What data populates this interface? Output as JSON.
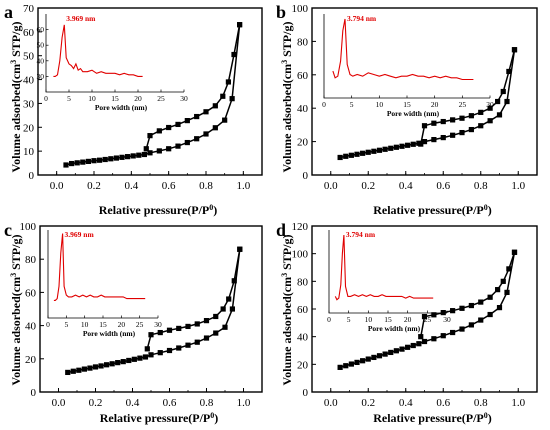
{
  "chart_data": [
    {
      "type": "line",
      "panel_letter": "a",
      "xlabel": "Relative pressure(P/P0)",
      "ylabel": "Volume adsorbed(cm3 STP/g)",
      "xlim": [
        -0.1,
        1.1
      ],
      "ylim": [
        0,
        70
      ],
      "xticks": [
        "0.0",
        "0.2",
        "0.4",
        "0.6",
        "0.8",
        "1.0"
      ],
      "yticks": [
        "0",
        "10",
        "20",
        "30",
        "40",
        "50",
        "60",
        "70"
      ],
      "series": [
        {
          "role": "adsorption",
          "x": [
            0.05,
            0.08,
            0.11,
            0.14,
            0.17,
            0.2,
            0.23,
            0.26,
            0.29,
            0.32,
            0.35,
            0.38,
            0.41,
            0.44,
            0.47,
            0.5,
            0.55,
            0.6,
            0.65,
            0.7,
            0.75,
            0.8,
            0.85,
            0.9,
            0.94,
            0.98
          ],
          "y": [
            4.2,
            4.8,
            5.1,
            5.4,
            5.7,
            6.0,
            6.2,
            6.5,
            6.8,
            7.1,
            7.4,
            7.7,
            8.0,
            8.3,
            8.6,
            9.3,
            10.1,
            11.0,
            12.1,
            13.6,
            15.2,
            17.2,
            19.8,
            23.0,
            32.0,
            63.0
          ]
        },
        {
          "role": "desorption",
          "x": [
            0.98,
            0.95,
            0.92,
            0.89,
            0.85,
            0.8,
            0.75,
            0.7,
            0.65,
            0.6,
            0.55,
            0.5,
            0.48
          ],
          "y": [
            63.0,
            50.5,
            39.0,
            33.0,
            29.0,
            26.5,
            24.5,
            22.8,
            21.2,
            19.9,
            18.5,
            16.5,
            11.0
          ]
        }
      ],
      "inset": {
        "annotation": "3.969 nm",
        "xlabel": "Pore width (nm)",
        "xlim": [
          0,
          30
        ],
        "ylim": [
          20,
          70
        ],
        "xticks": [
          "0",
          "5",
          "10",
          "15",
          "20",
          "25",
          "30"
        ],
        "yticks": [
          "30",
          "40",
          "50",
          "60"
        ],
        "x": [
          1.6,
          2.0,
          2.5,
          3.0,
          3.5,
          3.97,
          4.4,
          5.0,
          5.5,
          6.0,
          6.5,
          7.0,
          7.5,
          8.0,
          9.0,
          10.0,
          11.0,
          12.0,
          13.0,
          14.0,
          15.0,
          16.0,
          17.0,
          18.0,
          19.0,
          20.0,
          21.0
        ],
        "y": [
          30,
          30,
          31,
          40,
          55,
          63,
          42,
          38,
          37,
          35,
          38,
          34,
          35,
          33,
          33,
          34,
          32,
          33,
          32,
          32,
          32,
          31,
          32,
          31,
          31,
          30,
          30
        ]
      }
    },
    {
      "type": "line",
      "panel_letter": "b",
      "xlabel": "Relative pressure(P/P0)",
      "ylabel": "Volume adsorbed(cm3 STP/g)",
      "xlim": [
        -0.1,
        1.1
      ],
      "ylim": [
        0,
        100
      ],
      "xticks": [
        "0.0",
        "0.2",
        "0.4",
        "0.6",
        "0.8",
        "1.0"
      ],
      "yticks": [
        "0",
        "20",
        "40",
        "60",
        "80",
        "100"
      ],
      "series": [
        {
          "role": "adsorption",
          "x": [
            0.05,
            0.08,
            0.11,
            0.14,
            0.17,
            0.2,
            0.23,
            0.26,
            0.29,
            0.32,
            0.35,
            0.38,
            0.41,
            0.44,
            0.47,
            0.5,
            0.55,
            0.6,
            0.65,
            0.7,
            0.75,
            0.8,
            0.85,
            0.9,
            0.94,
            0.98
          ],
          "y": [
            10.5,
            11.2,
            11.8,
            12.4,
            13.0,
            13.6,
            14.2,
            14.8,
            15.4,
            16.0,
            16.6,
            17.2,
            17.8,
            18.4,
            19.0,
            20.0,
            21.2,
            22.4,
            23.8,
            25.4,
            27.2,
            29.5,
            32.5,
            36.0,
            44.0,
            75.0
          ]
        },
        {
          "role": "desorption",
          "x": [
            0.98,
            0.95,
            0.92,
            0.89,
            0.85,
            0.8,
            0.75,
            0.7,
            0.65,
            0.6,
            0.55,
            0.5,
            0.48
          ],
          "y": [
            75.0,
            62.0,
            50.0,
            44.0,
            40.0,
            37.5,
            35.5,
            34.0,
            33.0,
            32.0,
            31.0,
            29.5,
            18.5
          ]
        }
      ],
      "inset": {
        "annotation": "3.794 nm",
        "xlabel": "Pore width (nm)",
        "xlim": [
          0,
          30
        ],
        "ylim": [
          20,
          70
        ],
        "xticks": [
          "0",
          "5",
          "10",
          "15",
          "20",
          "25",
          "30"
        ],
        "yticks": [],
        "x": [
          1.6,
          2.0,
          2.5,
          3.0,
          3.4,
          3.79,
          4.2,
          4.7,
          5.2,
          6.0,
          7.0,
          8.0,
          9.0,
          10.0,
          11.0,
          12.0,
          13.0,
          14.0,
          15.0,
          16.0,
          17.0,
          18.0,
          19.0,
          20.0,
          21.0,
          22.0,
          23.0,
          24.0,
          25.0,
          26.0,
          27.0
        ],
        "y": [
          36,
          32,
          33,
          42,
          60,
          67,
          40,
          34,
          33,
          34,
          33,
          35,
          34,
          33,
          34,
          33,
          32,
          33,
          33,
          34,
          33,
          33,
          32,
          33,
          32,
          33,
          32,
          32,
          31,
          31,
          31
        ]
      }
    },
    {
      "type": "line",
      "panel_letter": "c",
      "xlabel": "Relative pressure(P/P0)",
      "ylabel": "Volume adsorbed(cm3 STP/g)",
      "xlim": [
        -0.1,
        1.1
      ],
      "ylim": [
        0,
        100
      ],
      "xticks": [
        "0.0",
        "0.2",
        "0.4",
        "0.6",
        "0.8",
        "1.0"
      ],
      "yticks": [
        "0",
        "20",
        "40",
        "60",
        "80",
        "100"
      ],
      "series": [
        {
          "role": "adsorption",
          "x": [
            0.05,
            0.08,
            0.11,
            0.14,
            0.17,
            0.2,
            0.23,
            0.26,
            0.29,
            0.32,
            0.35,
            0.38,
            0.41,
            0.44,
            0.47,
            0.5,
            0.55,
            0.6,
            0.65,
            0.7,
            0.75,
            0.8,
            0.85,
            0.9,
            0.94,
            0.98
          ],
          "y": [
            11.8,
            12.5,
            13.1,
            13.8,
            14.4,
            15.1,
            15.7,
            16.4,
            17.0,
            17.7,
            18.3,
            19.0,
            19.7,
            20.4,
            21.1,
            22.4,
            23.7,
            25.0,
            26.5,
            28.2,
            30.0,
            32.5,
            35.5,
            39.0,
            50.0,
            86.0
          ]
        },
        {
          "role": "desorption",
          "x": [
            0.98,
            0.95,
            0.92,
            0.89,
            0.85,
            0.8,
            0.75,
            0.7,
            0.65,
            0.6,
            0.55,
            0.5,
            0.48
          ],
          "y": [
            86.0,
            67.0,
            56.0,
            50.0,
            45.5,
            43.0,
            41.0,
            39.5,
            38.3,
            37.2,
            35.8,
            34.5,
            26.0
          ]
        }
      ],
      "inset": {
        "annotation": "3.969 nm",
        "xlabel": "Pore width (nm)",
        "xlim": [
          0,
          30
        ],
        "ylim": [
          20,
          70
        ],
        "xticks": [
          "0",
          "5",
          "10",
          "15",
          "20",
          "25",
          "30"
        ],
        "yticks": [],
        "x": [
          1.6,
          2.0,
          2.5,
          3.0,
          3.5,
          3.97,
          4.4,
          5.0,
          5.6,
          6.5,
          7.5,
          8.5,
          9.5,
          10.5,
          11.5,
          12.5,
          13.5,
          14.5,
          15.5,
          16.5,
          17.5,
          18.5,
          19.5,
          20.5,
          21.5,
          22.5,
          23.5,
          24.5,
          25.5,
          26.5
        ],
        "y": [
          30,
          30,
          31,
          38,
          57,
          68,
          38,
          33,
          32,
          32,
          33,
          32,
          33,
          32,
          33,
          32,
          32,
          33,
          32,
          32,
          32,
          32,
          32,
          32,
          31,
          31,
          31,
          31,
          31,
          31
        ]
      }
    },
    {
      "type": "line",
      "panel_letter": "d",
      "xlabel": "Relative pressure(P/P0)",
      "ylabel": "Volume adsorbed(cm3 STP/g)",
      "xlim": [
        -0.1,
        1.1
      ],
      "ylim": [
        0,
        120
      ],
      "xticks": [
        "0.0",
        "0.2",
        "0.4",
        "0.6",
        "0.8",
        "1.0"
      ],
      "yticks": [
        "0",
        "20",
        "40",
        "60",
        "80",
        "100",
        "120"
      ],
      "series": [
        {
          "role": "adsorption",
          "x": [
            0.05,
            0.08,
            0.11,
            0.14,
            0.17,
            0.2,
            0.23,
            0.26,
            0.29,
            0.32,
            0.35,
            0.38,
            0.41,
            0.44,
            0.47,
            0.5,
            0.55,
            0.6,
            0.65,
            0.7,
            0.75,
            0.8,
            0.85,
            0.9,
            0.94,
            0.98
          ],
          "y": [
            17.8,
            19.0,
            20.2,
            21.4,
            22.6,
            23.8,
            25.0,
            26.2,
            27.4,
            28.6,
            29.8,
            31.0,
            32.3,
            33.6,
            34.9,
            36.5,
            38.5,
            40.7,
            43.0,
            45.5,
            48.5,
            52.0,
            56.0,
            61.0,
            72.0,
            101.0
          ]
        },
        {
          "role": "desorption",
          "x": [
            0.98,
            0.95,
            0.92,
            0.89,
            0.85,
            0.8,
            0.75,
            0.7,
            0.65,
            0.6,
            0.55,
            0.5,
            0.48
          ],
          "y": [
            101.0,
            89.0,
            80.0,
            74.0,
            68.5,
            65.0,
            62.5,
            60.5,
            58.8,
            57.4,
            55.8,
            54.5,
            40.0
          ]
        }
      ],
      "inset": {
        "annotation": "3.794 nm",
        "xlabel": "Pore width (nm)",
        "xlim": [
          0,
          30
        ],
        "ylim": [
          20,
          70
        ],
        "xticks": [
          "0",
          "5",
          "10",
          "15",
          "20",
          "25",
          "30"
        ],
        "yticks": [],
        "x": [
          1.6,
          2.0,
          2.5,
          3.0,
          3.4,
          3.79,
          4.2,
          4.8,
          5.5,
          6.5,
          7.5,
          8.5,
          9.5,
          10.5,
          11.5,
          12.5,
          13.5,
          14.5,
          15.5,
          16.5,
          17.5,
          18.5,
          19.5,
          20.5,
          21.5,
          22.5,
          23.5,
          24.5,
          25.5,
          26.5
        ],
        "y": [
          30,
          28,
          29,
          37,
          56,
          67,
          36,
          30,
          30,
          31,
          30,
          31,
          30,
          31,
          30,
          30,
          31,
          30,
          30,
          30,
          30,
          30,
          29,
          30,
          29,
          29,
          29,
          29,
          29,
          29
        ]
      }
    }
  ],
  "colors": {
    "main": "#000000",
    "inset": "#e00000"
  }
}
